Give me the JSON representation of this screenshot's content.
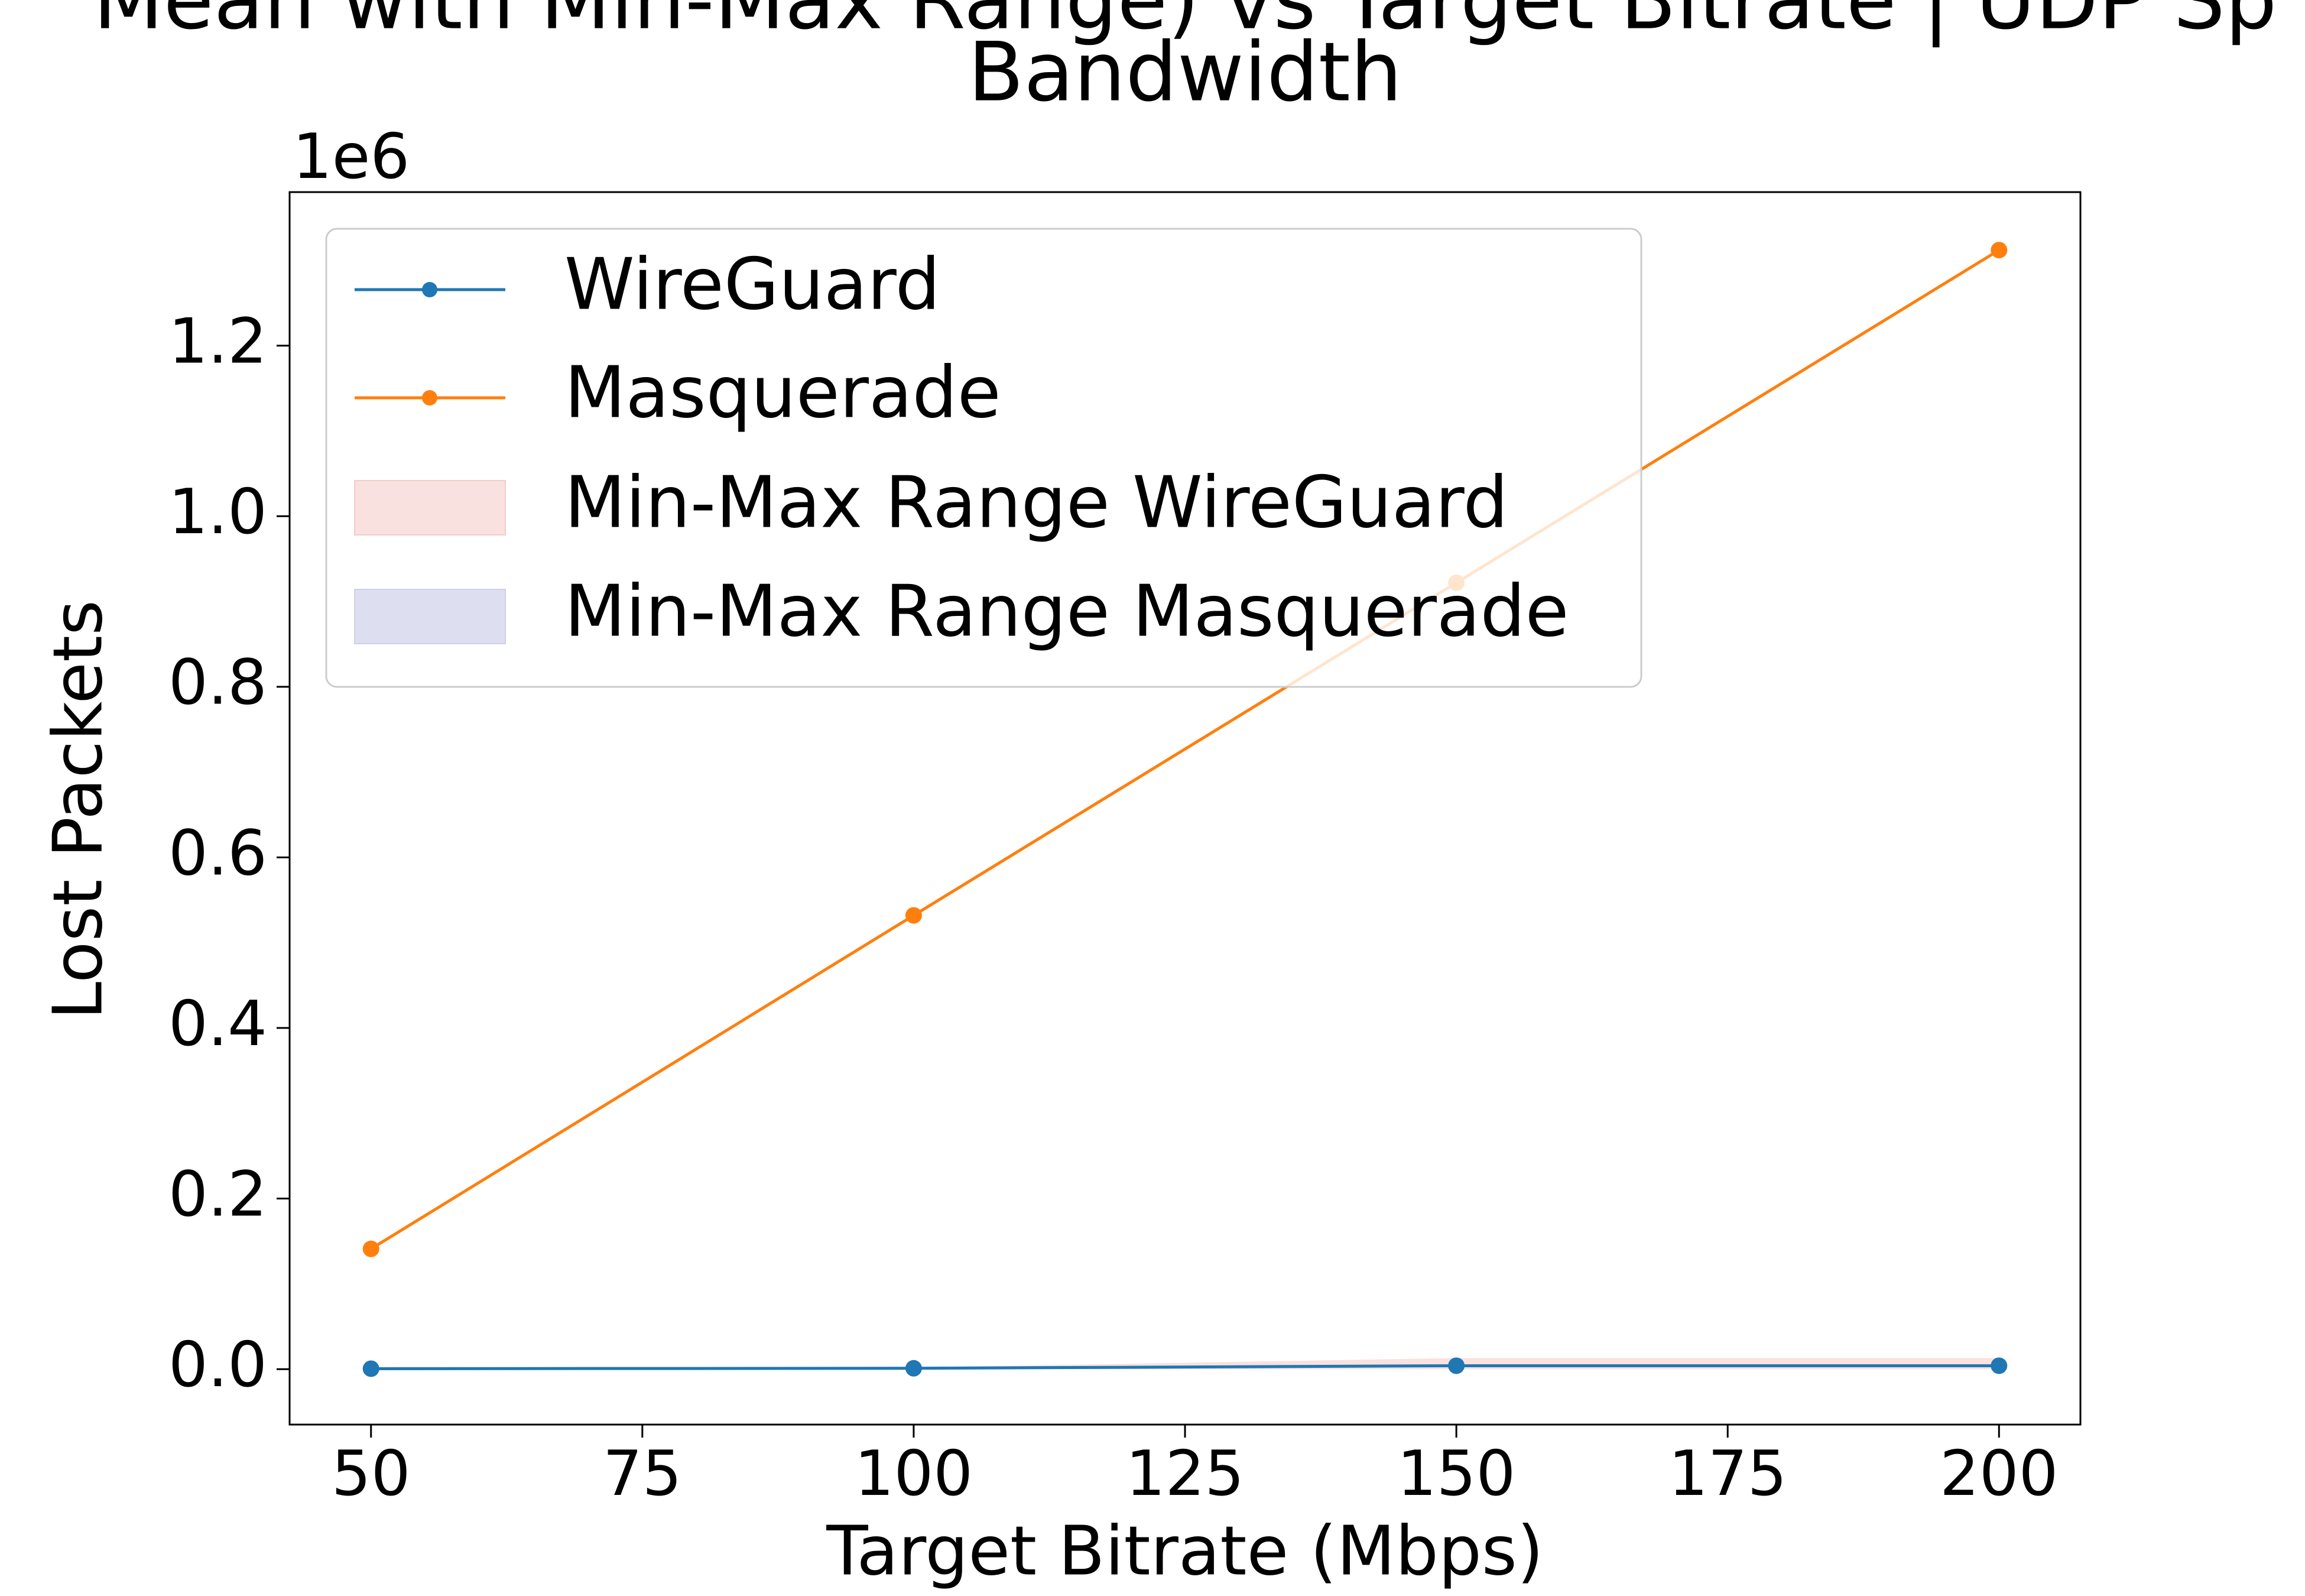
{
  "chart_data": {
    "type": "line",
    "title_line1": "Mean with Min-Max Range) vs Target Bitrate | UDP Sp",
    "title_line2": "Bandwidth",
    "xlabel": "Target Bitrate (Mbps)",
    "ylabel": "Lost Packets",
    "y_offset_label": "1e6",
    "xlim": [
      42.5,
      207.5
    ],
    "ylim": [
      -0.065,
      1.38
    ],
    "x_ticks": [
      50,
      75,
      100,
      125,
      150,
      175,
      200
    ],
    "x_tick_labels": [
      "50",
      "75",
      "100",
      "125",
      "150",
      "175",
      "200"
    ],
    "y_ticks": [
      0.0,
      0.2,
      0.4,
      0.6,
      0.8,
      1.0,
      1.2
    ],
    "y_tick_labels": [
      "0.0",
      "0.2",
      "0.4",
      "0.6",
      "0.8",
      "1.0",
      "1.2"
    ],
    "legend_position": "upper-left",
    "grid": false,
    "series": [
      {
        "name": "WireGuard",
        "color": "#1f77b4",
        "x": [
          50,
          100,
          150,
          200
        ],
        "y": [
          0.0005,
          0.001,
          0.004,
          0.004
        ]
      },
      {
        "name": "Masquerade",
        "color": "#ff7f0e",
        "x": [
          50,
          100,
          150,
          200
        ],
        "y": [
          0.141,
          0.532,
          0.922,
          1.312
        ]
      }
    ],
    "bands": [
      {
        "name": "Min-Max Range WireGuard",
        "color": "#f4c3c0",
        "x": [
          50,
          100,
          150,
          200
        ],
        "ymin": [
          0.0,
          0.0,
          0.0,
          0.0
        ],
        "ymax": [
          0.001,
          0.002,
          0.013,
          0.013
        ]
      },
      {
        "name": "Min-Max Range Masquerade",
        "color": "#c8c8e8",
        "x": [
          50,
          100,
          150,
          200
        ],
        "ymin": [
          0.141,
          0.532,
          0.922,
          1.312
        ],
        "ymax": [
          0.141,
          0.532,
          0.922,
          1.312
        ]
      }
    ]
  }
}
